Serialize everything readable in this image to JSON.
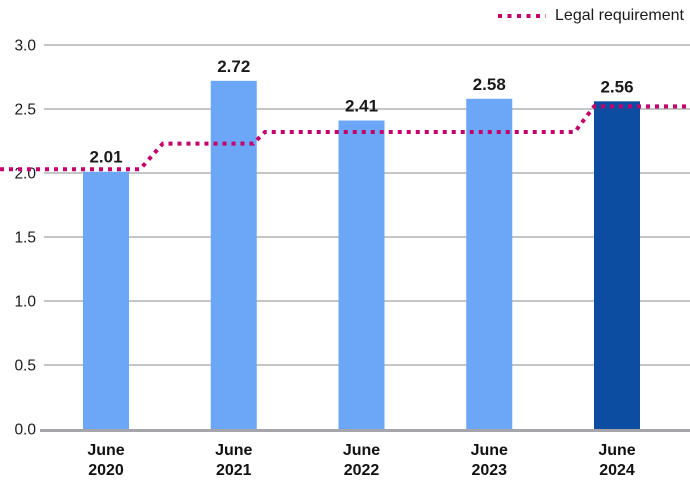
{
  "legend": {
    "label": "Legal requirement"
  },
  "chart_data": {
    "type": "bar",
    "title": "",
    "xlabel": "",
    "ylabel": "",
    "categories": [
      "June 2020",
      "June 2021",
      "June 2022",
      "June 2023",
      "June 2024"
    ],
    "values": [
      2.01,
      2.72,
      2.41,
      2.58,
      2.56
    ],
    "value_labels": [
      "2.01",
      "2.72",
      "2.41",
      "2.58",
      "2.56"
    ],
    "bar_colors": [
      "#6CA6F7",
      "#6CA6F7",
      "#6CA6F7",
      "#6CA6F7",
      "#0C4DA2"
    ],
    "ylim": [
      0.0,
      3.0
    ],
    "y_ticks": [
      {
        "label": "3.0",
        "value": 3.0
      },
      {
        "label": "2.5",
        "value": 2.5
      },
      {
        "label": "2.0",
        "value": 2.0
      },
      {
        "label": "1.5",
        "value": 1.5
      },
      {
        "label": "1.0",
        "value": 1.0
      },
      {
        "label": "0.5",
        "value": 0.5
      },
      {
        "label": "0.0",
        "value": 0.0
      }
    ],
    "grid": "horizontal",
    "legend_position": "top-right",
    "legal_requirement_line": {
      "name": "Legal requirement",
      "style": "dotted-step",
      "color": "#C5006B",
      "levels": [
        {
          "value": 2.03,
          "start_frac": 0.0,
          "end_frac": 0.203
        },
        {
          "value": 2.23,
          "start_frac": 0.236,
          "end_frac": 0.367
        },
        {
          "value": 2.32,
          "start_frac": 0.384,
          "end_frac": 0.833
        },
        {
          "value": 2.52,
          "start_frac": 0.861,
          "end_frac": 1.0
        }
      ]
    },
    "colors": {
      "bar_light_blue": "#6CA6F7",
      "bar_dark_blue": "#0C4DA2",
      "line_magenta": "#C5006B",
      "gridline_gray": "#8C8C8C",
      "axis_gray": "#A5A5AB",
      "text_dark": "#1A1A1A"
    }
  }
}
